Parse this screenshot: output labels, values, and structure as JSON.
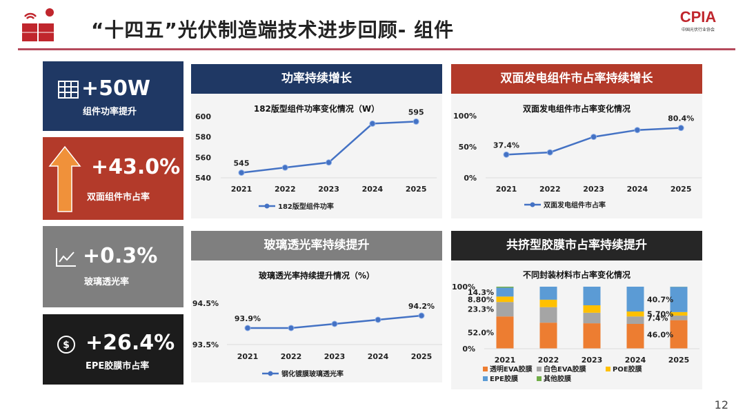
{
  "header": {
    "title": "“十四五”光伏制造端技术进步回顾- 组件",
    "logo_text": "CPIA",
    "logo_sub": "中国光伏行业协会"
  },
  "stats": [
    {
      "value": "+50W",
      "label": "组件功率提升",
      "icon": "grid-panel-icon",
      "color": "#1f3864"
    },
    {
      "value": "+43.0%",
      "label": "双面组件市占率",
      "icon": "up-arrow-icon",
      "color": "#b33a2a"
    },
    {
      "value": "+0.3%",
      "label": "玻璃透光率",
      "icon": "line-chart-icon",
      "color": "#7f7f7f"
    },
    {
      "value": "+26.4%",
      "label": "EPE胶膜市占率",
      "icon": "dollar-icon",
      "color": "#1c1c1c"
    }
  ],
  "panels": [
    {
      "header": "功率持续增长",
      "color": "#1f3864"
    },
    {
      "header": "双面发电组件市占率持续增长",
      "color": "#b33a2a"
    },
    {
      "header": "玻璃透光率持续提升",
      "color": "#7f7f7f"
    },
    {
      "header": "共挤型胶膜市占率持续提升",
      "color": "#262626"
    }
  ],
  "chart_data": [
    {
      "type": "line",
      "title": "182版型组件功率变化情况（W）",
      "categories": [
        "2021",
        "2022",
        "2023",
        "2024",
        "2025"
      ],
      "series": [
        {
          "name": "182版型组件功率",
          "values": [
            545,
            550,
            555,
            593,
            595
          ]
        }
      ],
      "data_labels": {
        "0": "545",
        "4": "595"
      },
      "yticks": [
        "540",
        "560",
        "580",
        "600"
      ],
      "ylim": [
        540,
        600
      ]
    },
    {
      "type": "line",
      "title": "双面发电组件市占率变化情况",
      "categories": [
        "2021",
        "2022",
        "2023",
        "2024",
        "2025"
      ],
      "series": [
        {
          "name": "双面发电组件市占率",
          "values": [
            37.4,
            41,
            66,
            77,
            80.4
          ]
        }
      ],
      "data_labels": {
        "0": "37.4%",
        "4": "80.4%"
      },
      "yticks": [
        "0%",
        "50%",
        "100%"
      ],
      "ylim": [
        0,
        100
      ]
    },
    {
      "type": "line",
      "title": "玻璃透光率持续提升情况（%）",
      "categories": [
        "2021",
        "2022",
        "2023",
        "2024",
        "2025"
      ],
      "series": [
        {
          "name": "钢化镀膜玻璃透光率",
          "values": [
            93.9,
            93.9,
            94.0,
            94.1,
            94.2
          ]
        }
      ],
      "data_labels": {
        "0": "93.9%",
        "4": "94.2%"
      },
      "yticks": [
        "93.5%",
        "94.5%"
      ],
      "ylim": [
        93.5,
        94.5
      ]
    },
    {
      "type": "bar",
      "stacked": true,
      "title": "不同封装材料市占率变化情况",
      "categories": [
        "2021",
        "2022",
        "2023",
        "2024",
        "2025"
      ],
      "series": [
        {
          "name": "透明EVA胶膜",
          "color": "#ed7d31",
          "values": [
            52.0,
            42,
            41,
            40,
            46.0
          ]
        },
        {
          "name": "白色EVA胶膜",
          "color": "#a5a5a5",
          "values": [
            23.3,
            25,
            17,
            12,
            7.4
          ]
        },
        {
          "name": "POE胶膜",
          "color": "#ffc000",
          "values": [
            8.8,
            12,
            12,
            8,
            5.7
          ]
        },
        {
          "name": "EPE胶膜",
          "color": "#5b9bd5",
          "values": [
            14.3,
            21,
            30,
            40,
            40.7
          ]
        },
        {
          "name": "其他胶膜",
          "color": "#70ad47",
          "values": [
            1.6,
            0,
            0,
            0,
            0.2
          ]
        }
      ],
      "data_labels_2021": [
        "52.0%",
        "23.3%",
        "8.80%",
        "14.3%"
      ],
      "data_labels_2025": [
        "46.0%",
        "7.4%",
        "5.70%",
        "40.7%"
      ],
      "yticks": [
        "0%",
        "100%"
      ],
      "ylim": [
        0,
        100
      ]
    }
  ],
  "page_number": "12"
}
